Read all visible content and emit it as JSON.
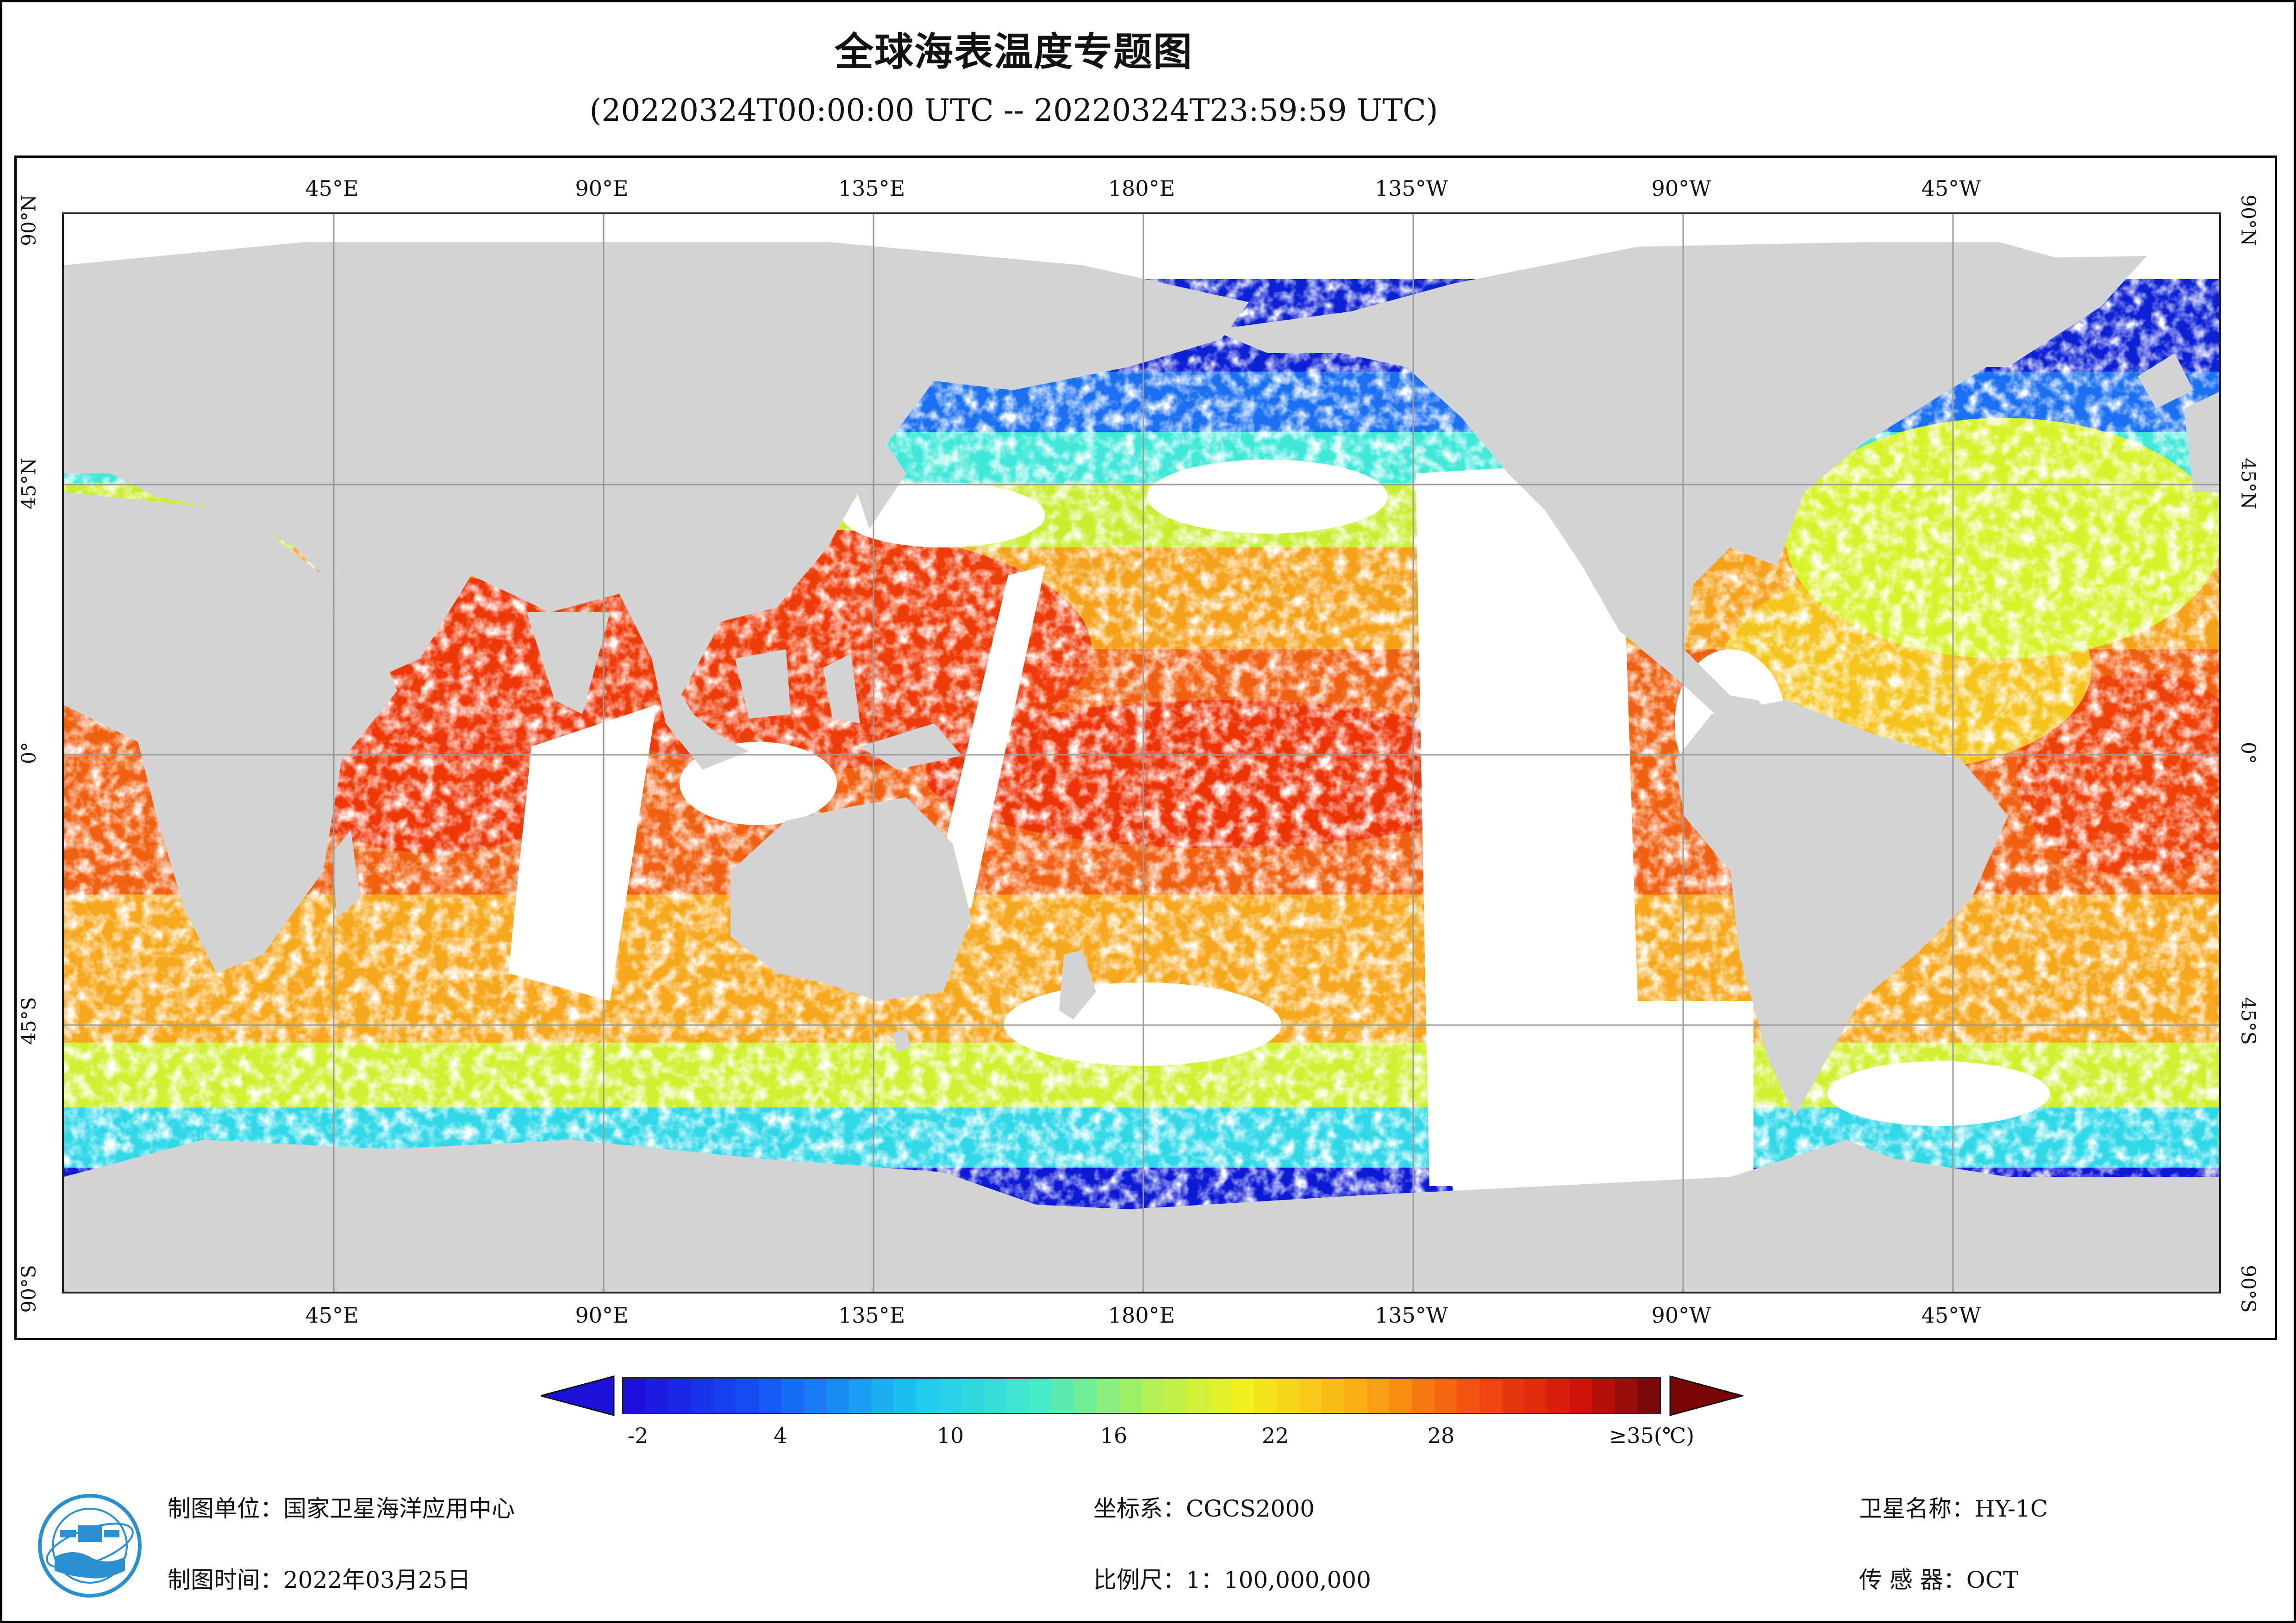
{
  "title": "全球海表温度专题图",
  "subtitle": "(20220324T00:00:00 UTC -- 20220324T23:59:59 UTC)",
  "axes": {
    "lon_labels": [
      "45°E",
      "90°E",
      "135°E",
      "180°E",
      "135°W",
      "90°W",
      "45°W"
    ],
    "lat_labels": [
      "90°N",
      "45°N",
      "0°",
      "45°S",
      "90°S"
    ]
  },
  "colorbar": {
    "tick_labels": [
      "-2",
      "4",
      "10",
      "16",
      "22",
      "28",
      "≥35(℃)"
    ],
    "min_value": -2,
    "max_value": 35,
    "under_color": "#1a10d8",
    "over_color": "#7a0606"
  },
  "footer": {
    "unit": "制图单位：国家卫星海洋应用中心",
    "time": "制图时间：2022年03月25日",
    "crs": "坐标系：CGCS2000",
    "scale": "比例尺：1：100,000,000",
    "satellite": "卫星名称：HY-1C",
    "sensor": "传 感 器：OCT"
  },
  "colors": {
    "land": "#d2d3d5",
    "gridline": "#9a9a9a",
    "cold": "#0b1ad8",
    "warm": "#ee3a0a"
  }
}
